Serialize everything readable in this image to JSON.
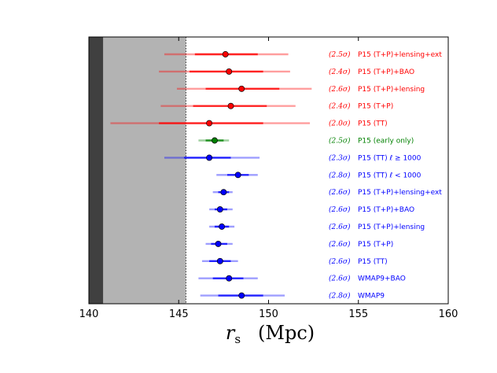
{
  "chart_data": {
    "type": "scatter",
    "subtype": "forest-plot-errorbars",
    "title": "",
    "xlabel": "r_s (Mpc)",
    "xlabel_symbol": "r",
    "xlabel_sub": "s",
    "xlabel_unit": "(Mpc)",
    "ylabel": "",
    "xlim": [
      140,
      160
    ],
    "xticks": [
      140,
      145,
      150,
      155,
      160
    ],
    "grid": false,
    "shaded_regions": [
      {
        "from": 140,
        "to": 140.8,
        "color": "#404040"
      },
      {
        "from": 140.8,
        "to": 145.4,
        "color": "#b3b3b3"
      }
    ],
    "reference_line": {
      "x": 145.4,
      "style": "dotted"
    },
    "rows": [
      {
        "sigma": "(2.5σ)",
        "label": "P15 (T+P)+lensing+ext",
        "color": "#ff0000",
        "value": 147.6,
        "err1": [
          145.9,
          149.4
        ],
        "err2": [
          144.2,
          151.1
        ]
      },
      {
        "sigma": "(2.4σ)",
        "label": "P15 (T+P)+BAO",
        "color": "#ff0000",
        "value": 147.8,
        "err1": [
          145.6,
          149.7
        ],
        "err2": [
          143.9,
          151.2
        ]
      },
      {
        "sigma": "(2.6σ)",
        "label": "P15 (T+P)+lensing",
        "color": "#ff0000",
        "value": 148.5,
        "err1": [
          146.5,
          150.6
        ],
        "err2": [
          144.9,
          152.4
        ]
      },
      {
        "sigma": "(2.4σ)",
        "label": "P15 (T+P)",
        "color": "#ff0000",
        "value": 147.9,
        "err1": [
          145.8,
          149.9
        ],
        "err2": [
          144.0,
          151.5
        ]
      },
      {
        "sigma": "(2.0σ)",
        "label": "P15 (TT)",
        "color": "#ff0000",
        "value": 146.7,
        "err1": [
          143.9,
          149.7
        ],
        "err2": [
          141.2,
          152.3
        ]
      },
      {
        "sigma": "(2.5σ)",
        "label": "P15 (early only)",
        "color": "#008000",
        "value": 147.0,
        "err1": [
          146.5,
          147.5
        ],
        "err2": [
          146.1,
          147.8
        ]
      },
      {
        "sigma": "(2.3σ)",
        "label": "P15 (TT) ℓ ≥ 1000",
        "color": "#0000ff",
        "value": 146.7,
        "err1": [
          145.3,
          147.9
        ],
        "err2": [
          144.2,
          149.5
        ]
      },
      {
        "sigma": "(2.8σ)",
        "label": "P15 (TT) ℓ < 1000",
        "color": "#0000ff",
        "value": 148.3,
        "err1": [
          147.7,
          148.9
        ],
        "err2": [
          147.1,
          149.4
        ]
      },
      {
        "sigma": "(2.6σ)",
        "label": "P15 (T+P)+lensing+ext",
        "color": "#0000ff",
        "value": 147.5,
        "err1": [
          147.2,
          147.8
        ],
        "err2": [
          146.9,
          148.0
        ]
      },
      {
        "sigma": "(2.6σ)",
        "label": "P15 (T+P)+BAO",
        "color": "#0000ff",
        "value": 147.3,
        "err1": [
          147.0,
          147.7
        ],
        "err2": [
          146.7,
          148.0
        ]
      },
      {
        "sigma": "(2.6σ)",
        "label": "P15 (T+P)+lensing",
        "color": "#0000ff",
        "value": 147.4,
        "err1": [
          147.0,
          147.8
        ],
        "err2": [
          146.7,
          148.1
        ]
      },
      {
        "sigma": "(2.6σ)",
        "label": "P15 (T+P)",
        "color": "#0000ff",
        "value": 147.2,
        "err1": [
          146.8,
          147.7
        ],
        "err2": [
          146.5,
          148.0
        ]
      },
      {
        "sigma": "(2.6σ)",
        "label": "P15 (TT)",
        "color": "#0000ff",
        "value": 147.3,
        "err1": [
          146.7,
          147.9
        ],
        "err2": [
          146.3,
          148.3
        ]
      },
      {
        "sigma": "(2.6σ)",
        "label": "WMAP9+BAO",
        "color": "#0000ff",
        "value": 147.8,
        "err1": [
          146.9,
          148.6
        ],
        "err2": [
          146.1,
          149.4
        ]
      },
      {
        "sigma": "(2.8σ)",
        "label": "WMAP9",
        "color": "#0000ff",
        "value": 148.5,
        "err1": [
          147.2,
          149.7
        ],
        "err2": [
          146.2,
          150.9
        ]
      }
    ]
  }
}
